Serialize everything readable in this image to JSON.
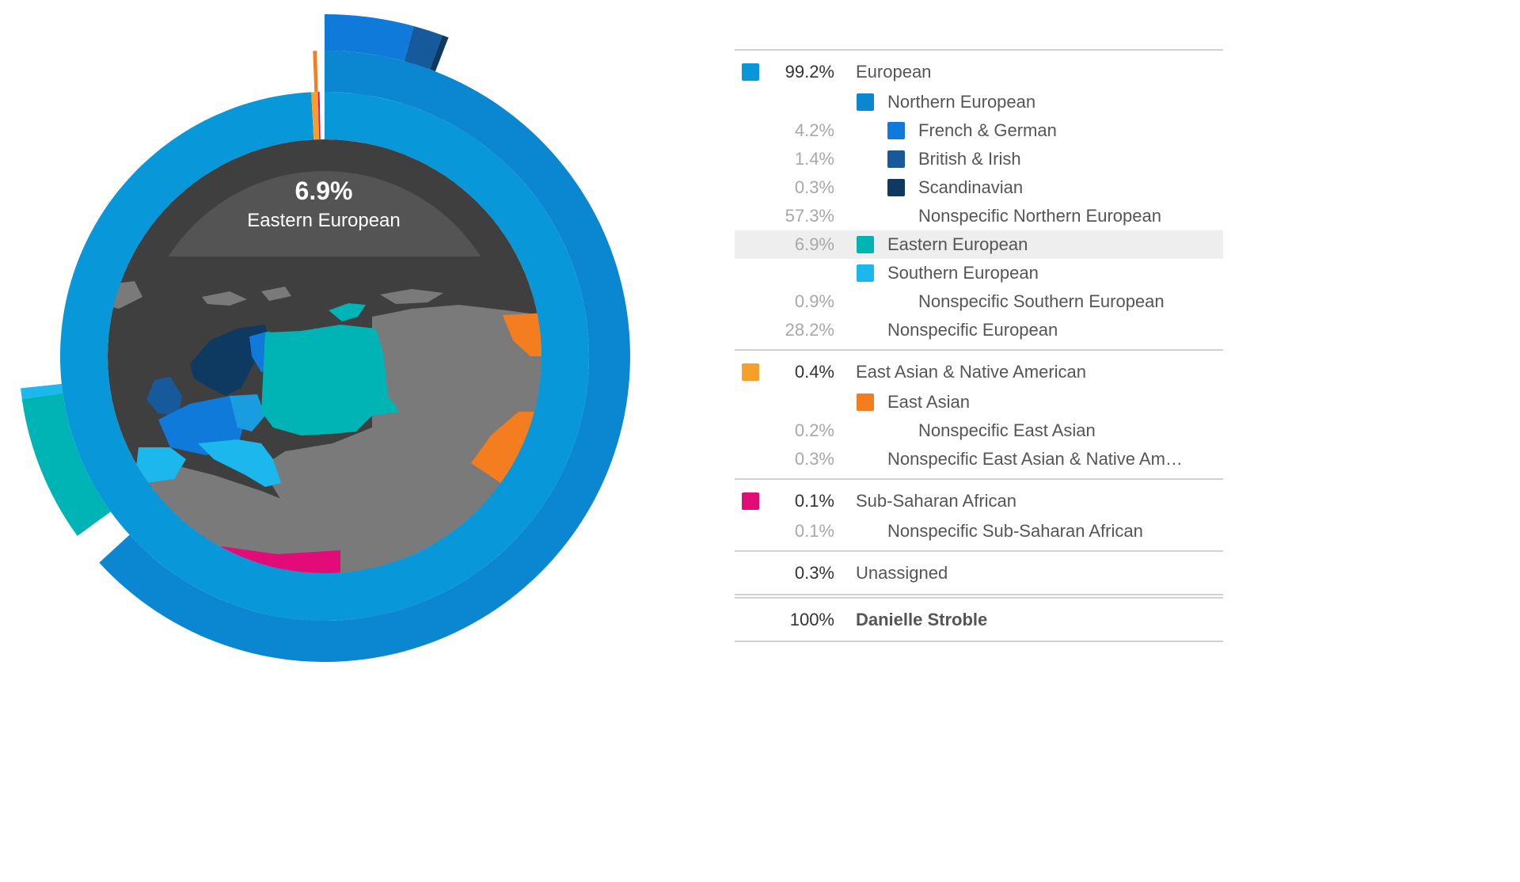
{
  "center": {
    "percent": "6.9%",
    "label": "Eastern European"
  },
  "chart_data": {
    "type": "sunburst",
    "inner_ring": [
      {
        "name": "European",
        "percent": 99.2,
        "color": "#0897d8"
      },
      {
        "name": "East Asian & Native American",
        "percent": 0.4,
        "color": "#f6a02b"
      },
      {
        "name": "Sub-Saharan African",
        "percent": 0.1,
        "color": "#e30b77"
      },
      {
        "name": "Unassigned",
        "percent": 0.3,
        "color": "#ffffff"
      }
    ],
    "middle_ring": [
      {
        "name": "Northern European",
        "percent": 63.2,
        "color": "#0a87d0"
      },
      {
        "name": "Eastern European",
        "percent": 6.9,
        "color": "#00b4b6"
      },
      {
        "name": "Southern European",
        "percent": 0.9,
        "color": "#1bb7ed"
      },
      {
        "name": "Nonspecific European",
        "percent": 28.2,
        "color": "#0897d8"
      },
      {
        "name": "East Asian",
        "percent": 0.2,
        "color": "#f47d20"
      }
    ],
    "outer_ring": [
      {
        "name": "French & German",
        "percent": 4.2,
        "color": "#0f7ad9"
      },
      {
        "name": "British & Irish",
        "percent": 1.4,
        "color": "#165a9b"
      },
      {
        "name": "Scandinavian",
        "percent": 0.3,
        "color": "#0e3961"
      }
    ]
  },
  "legend": {
    "groups": [
      {
        "rows": [
          {
            "level": 0,
            "percent": "99.2%",
            "name": "European",
            "color": "#0897d8",
            "top": true
          },
          {
            "level": 1,
            "percent": "",
            "name": "Northern European",
            "color": "#0a87d0"
          },
          {
            "level": 2,
            "percent": "4.2%",
            "name": "French & German",
            "color": "#0f7ad9"
          },
          {
            "level": 2,
            "percent": "1.4%",
            "name": "British & Irish",
            "color": "#165a9b"
          },
          {
            "level": 2,
            "percent": "0.3%",
            "name": "Scandinavian",
            "color": "#0e3961"
          },
          {
            "level": 2,
            "percent": "57.3%",
            "name": "Nonspecific Northern European",
            "color": ""
          },
          {
            "level": 1,
            "percent": "6.9%",
            "name": "Eastern European",
            "color": "#00b4b6",
            "highlight": true
          },
          {
            "level": 1,
            "percent": "",
            "name": "Southern European",
            "color": "#1bb7ed"
          },
          {
            "level": 2,
            "percent": "0.9%",
            "name": "Nonspecific Southern European",
            "color": ""
          },
          {
            "level": 1,
            "percent": "28.2%",
            "name": "Nonspecific European",
            "color": ""
          }
        ]
      },
      {
        "rows": [
          {
            "level": 0,
            "percent": "0.4%",
            "name": "East Asian & Native American",
            "color": "#f6a02b",
            "top": true
          },
          {
            "level": 1,
            "percent": "",
            "name": "East Asian",
            "color": "#f47d20"
          },
          {
            "level": 2,
            "percent": "0.2%",
            "name": "Nonspecific East Asian",
            "color": ""
          },
          {
            "level": 1,
            "percent": "0.3%",
            "name": "Nonspecific East Asian & Native Am…",
            "color": ""
          }
        ]
      },
      {
        "rows": [
          {
            "level": 0,
            "percent": "0.1%",
            "name": "Sub-Saharan African",
            "color": "#e30b77",
            "top": true
          },
          {
            "level": 1,
            "percent": "0.1%",
            "name": "Nonspecific Sub-Saharan African",
            "color": ""
          }
        ]
      },
      {
        "rows": [
          {
            "level": 0,
            "percent": "0.3%",
            "name": "Unassigned",
            "color": "",
            "top": true
          }
        ]
      }
    ],
    "total": {
      "percent": "100%",
      "name": "Danielle Stroble"
    }
  }
}
